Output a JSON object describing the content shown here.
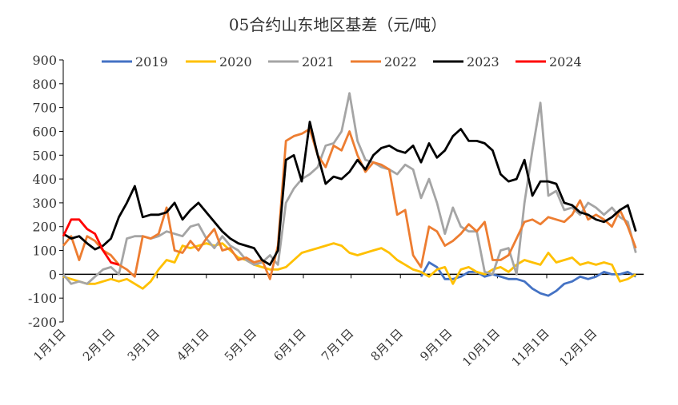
{
  "chart_data": {
    "type": "line",
    "title": "05合约山东地区基差（元/吨）",
    "xlabel": "",
    "ylabel": "",
    "ylim": [
      -200,
      900
    ],
    "yticks": [
      -200,
      -100,
      0,
      100,
      200,
      300,
      400,
      500,
      600,
      700,
      800,
      900
    ],
    "xtick_labels": [
      "1月1日",
      "2月1日",
      "3月1日",
      "4月1日",
      "5月1日",
      "6月1日",
      "7月1日",
      "8月1日",
      "9月1日",
      "10月1日",
      "11月1日",
      "12月1日"
    ],
    "xtick_dates": [
      "01-01",
      "02-01",
      "03-01",
      "04-01",
      "05-01",
      "06-01",
      "07-01",
      "08-01",
      "09-01",
      "10-01",
      "11-01",
      "12-01"
    ],
    "grid": false,
    "legend_position": "top",
    "x": [
      "01-01",
      "01-06",
      "01-11",
      "01-16",
      "01-21",
      "01-26",
      "01-31",
      "02-05",
      "02-10",
      "02-15",
      "02-20",
      "02-25",
      "03-02",
      "03-07",
      "03-12",
      "03-17",
      "03-22",
      "03-27",
      "04-01",
      "04-06",
      "04-11",
      "04-16",
      "04-21",
      "04-26",
      "05-01",
      "05-06",
      "05-11",
      "05-16",
      "05-21",
      "05-26",
      "05-31",
      "06-05",
      "06-10",
      "06-15",
      "06-20",
      "06-25",
      "06-30",
      "07-05",
      "07-10",
      "07-15",
      "07-20",
      "07-25",
      "07-30",
      "08-04",
      "08-09",
      "08-14",
      "08-19",
      "08-24",
      "08-29",
      "09-03",
      "09-08",
      "09-13",
      "09-18",
      "09-23",
      "09-28",
      "10-03",
      "10-08",
      "10-13",
      "10-18",
      "10-23",
      "10-28",
      "11-02",
      "11-07",
      "11-12",
      "11-17",
      "11-22",
      "11-27",
      "12-02",
      "12-07",
      "12-12",
      "12-17",
      "12-22",
      "12-27"
    ],
    "series": [
      {
        "name": "2019",
        "color": "#4472C4",
        "values": [
          null,
          null,
          null,
          null,
          null,
          null,
          null,
          null,
          null,
          null,
          null,
          null,
          null,
          null,
          null,
          null,
          null,
          null,
          null,
          null,
          null,
          null,
          null,
          null,
          null,
          null,
          null,
          null,
          null,
          null,
          null,
          null,
          null,
          null,
          null,
          null,
          null,
          null,
          null,
          null,
          null,
          null,
          null,
          null,
          null,
          -10,
          50,
          30,
          -20,
          -20,
          -10,
          10,
          10,
          -10,
          0,
          -10,
          -20,
          -20,
          -30,
          -60,
          -80,
          -90,
          -70,
          -40,
          -30,
          -10,
          -20,
          -10,
          10,
          0,
          0,
          10,
          -10
        ]
      },
      {
        "name": "2020",
        "color": "#FFC000",
        "values": [
          -10,
          -20,
          -30,
          -40,
          -40,
          -30,
          -20,
          -30,
          -20,
          -40,
          -60,
          -30,
          20,
          60,
          50,
          120,
          110,
          120,
          130,
          120,
          130,
          100,
          70,
          60,
          40,
          30,
          20,
          20,
          30,
          60,
          90,
          100,
          110,
          120,
          130,
          120,
          90,
          80,
          90,
          100,
          110,
          90,
          60,
          40,
          20,
          10,
          -10,
          20,
          30,
          -40,
          20,
          30,
          10,
          0,
          20,
          30,
          10,
          40,
          60,
          50,
          40,
          90,
          50,
          60,
          70,
          40,
          50,
          40,
          50,
          40,
          -30,
          -20,
          0
        ]
      },
      {
        "name": "2021",
        "color": "#A5A5A5",
        "values": [
          0,
          -40,
          -30,
          -40,
          -10,
          20,
          30,
          0,
          150,
          160,
          160,
          150,
          160,
          180,
          170,
          160,
          200,
          210,
          150,
          110,
          160,
          120,
          100,
          60,
          40,
          50,
          80,
          40,
          300,
          360,
          400,
          420,
          450,
          540,
          550,
          600,
          760,
          560,
          480,
          470,
          450,
          440,
          420,
          460,
          440,
          320,
          400,
          300,
          170,
          280,
          200,
          180,
          180,
          10,
          0,
          100,
          110,
          0,
          300,
          520,
          720,
          330,
          350,
          270,
          280,
          250,
          300,
          280,
          250,
          280,
          240,
          220,
          90
        ]
      },
      {
        "name": "2022",
        "color": "#ED7D31",
        "values": [
          120,
          160,
          60,
          160,
          140,
          100,
          80,
          40,
          20,
          -10,
          160,
          150,
          170,
          280,
          100,
          90,
          140,
          100,
          150,
          190,
          100,
          110,
          60,
          70,
          50,
          60,
          -20,
          120,
          560,
          580,
          590,
          610,
          500,
          450,
          540,
          520,
          600,
          500,
          430,
          470,
          460,
          440,
          250,
          270,
          80,
          30,
          200,
          180,
          120,
          140,
          170,
          210,
          180,
          220,
          60,
          60,
          80,
          150,
          220,
          230,
          210,
          240,
          230,
          220,
          250,
          310,
          230,
          250,
          230,
          200,
          270,
          200,
          110
        ]
      },
      {
        "name": "2023",
        "color": "#000000",
        "values": [
          170,
          150,
          160,
          130,
          105,
          120,
          150,
          240,
          300,
          370,
          240,
          250,
          250,
          260,
          300,
          230,
          270,
          300,
          260,
          220,
          180,
          150,
          130,
          120,
          110,
          60,
          40,
          100,
          480,
          500,
          390,
          640,
          500,
          380,
          410,
          400,
          430,
          480,
          440,
          500,
          530,
          540,
          520,
          510,
          540,
          470,
          550,
          490,
          520,
          580,
          610,
          560,
          560,
          550,
          520,
          420,
          390,
          400,
          480,
          330,
          390,
          390,
          380,
          300,
          290,
          260,
          250,
          230,
          220,
          240,
          270,
          290,
          180
        ]
      },
      {
        "name": "2024",
        "color": "#FF0000",
        "values": [
          160,
          230,
          230,
          190,
          170,
          100,
          50,
          40,
          null,
          null,
          null,
          null,
          null,
          null,
          null,
          null,
          null,
          null,
          null,
          null,
          null,
          null,
          null,
          null,
          null,
          null,
          null,
          null,
          null,
          null,
          null,
          null,
          null,
          null,
          null,
          null,
          null,
          null,
          null,
          null,
          null,
          null,
          null,
          null,
          null,
          null,
          null,
          null,
          null,
          null,
          null,
          null,
          null,
          null,
          null,
          null,
          null,
          null,
          null,
          null,
          null,
          null,
          null,
          null,
          null,
          null,
          null,
          null,
          null,
          null,
          null,
          null,
          null
        ]
      }
    ]
  }
}
